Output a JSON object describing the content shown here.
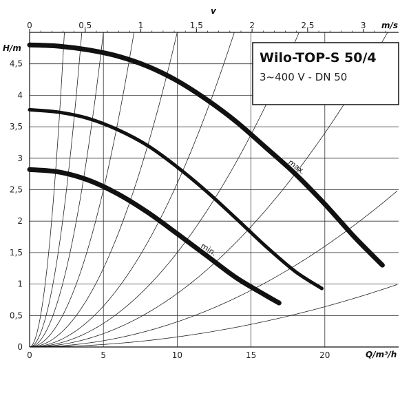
{
  "chart_data": {
    "type": "line",
    "title": "Wilo-TOP-S 50/4",
    "subtitle": "3~400 V - DN 50",
    "xlabel": "Q/m³/h",
    "ylabel": "H/m",
    "x2label": "v",
    "x2unit": "m/s",
    "xlim": [
      0,
      25
    ],
    "ylim": [
      0,
      5
    ],
    "x_ticks": [
      "0",
      "5",
      "10",
      "15",
      "20"
    ],
    "x_tick_values": [
      0,
      5,
      10,
      15,
      20
    ],
    "y_ticks": [
      "0",
      "0,5",
      "1",
      "1,5",
      "2",
      "2,5",
      "3",
      "3,5",
      "4",
      "4,5"
    ],
    "y_tick_values": [
      0,
      0.5,
      1,
      1.5,
      2,
      2.5,
      3,
      3.5,
      4,
      4.5
    ],
    "x2_ticks": [
      "0",
      "0,5",
      "1",
      "1,5",
      "2",
      "2,5",
      "3"
    ],
    "x2_tick_values": [
      0,
      0.5,
      1,
      1.5,
      2,
      2.5,
      3
    ],
    "x2_per_x": 0.1327,
    "grid": true,
    "series": [
      {
        "name": "max.",
        "x": [
          0,
          2,
          4,
          6,
          8,
          10,
          12,
          14,
          16,
          18,
          20,
          22,
          23.9
        ],
        "y": [
          4.8,
          4.78,
          4.72,
          4.62,
          4.46,
          4.23,
          3.93,
          3.58,
          3.17,
          2.75,
          2.27,
          1.75,
          1.3
        ]
      },
      {
        "name": "",
        "x": [
          0,
          2,
          4,
          6,
          8,
          10,
          12,
          14,
          16,
          18,
          19.8
        ],
        "y": [
          3.77,
          3.73,
          3.63,
          3.45,
          3.2,
          2.86,
          2.47,
          2.04,
          1.6,
          1.2,
          0.93
        ]
      },
      {
        "name": "min.",
        "x": [
          0,
          2,
          4,
          6,
          8,
          10,
          12,
          14,
          16,
          16.9
        ],
        "y": [
          2.82,
          2.78,
          2.65,
          2.43,
          2.14,
          1.8,
          1.45,
          1.1,
          0.82,
          0.7
        ]
      }
    ],
    "system_curve_coefficients": [
      0.0016,
      0.004,
      0.0085,
      0.015,
      0.026,
      0.05,
      0.1,
      0.2,
      0.4,
      0.9
    ]
  }
}
